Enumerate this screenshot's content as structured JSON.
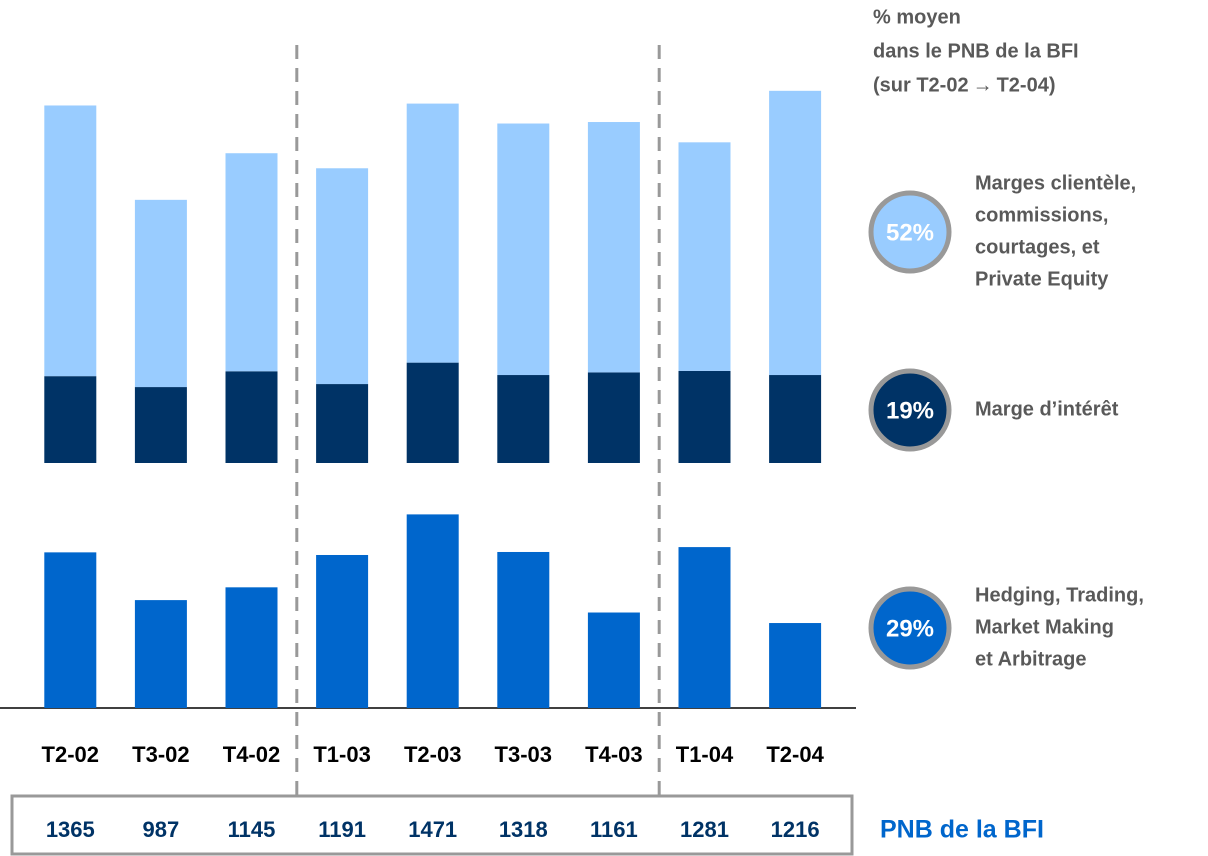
{
  "chart_data": {
    "type": "stacked_bar_panels",
    "categories": [
      "T2-02",
      "T3-02",
      "T4-02",
      "T1-03",
      "T2-03",
      "T3-03",
      "T4-03",
      "T1-04",
      "T2-04"
    ],
    "series": [
      {
        "name": [
          "Marges clientèle,",
          "commissions,",
          "courtages, et",
          "Private Equity"
        ],
        "color": "#99ccff",
        "panel": "top",
        "values": [
          720,
          498,
          580,
          574,
          689,
          669,
          666,
          608,
          756
        ],
        "share": 52,
        "share_label": "52%"
      },
      {
        "name": [
          "Marge d’intérêt"
        ],
        "color": "#003366",
        "panel": "top",
        "values": [
          231,
          202,
          244,
          210,
          267,
          234,
          241,
          245,
          234
        ],
        "share": 19,
        "share_label": "19%"
      },
      {
        "name": [
          "Hedging, Trading,",
          "Market Making",
          "et Arbitrage"
        ],
        "color": "#0066cc",
        "panel": "bottom",
        "values": [
          414,
          287,
          321,
          407,
          515,
          415,
          254,
          428,
          226
        ],
        "share": 29,
        "share_label": "29%"
      }
    ],
    "legend_title": [
      "% moyen",
      "dans le PNB de la BFI",
      "(sur T2-02 → T2-04)"
    ],
    "totals": {
      "label": "PNB de la BFI",
      "values": [
        1365,
        987,
        1145,
        1191,
        1471,
        1318,
        1161,
        1281,
        1216
      ]
    }
  }
}
